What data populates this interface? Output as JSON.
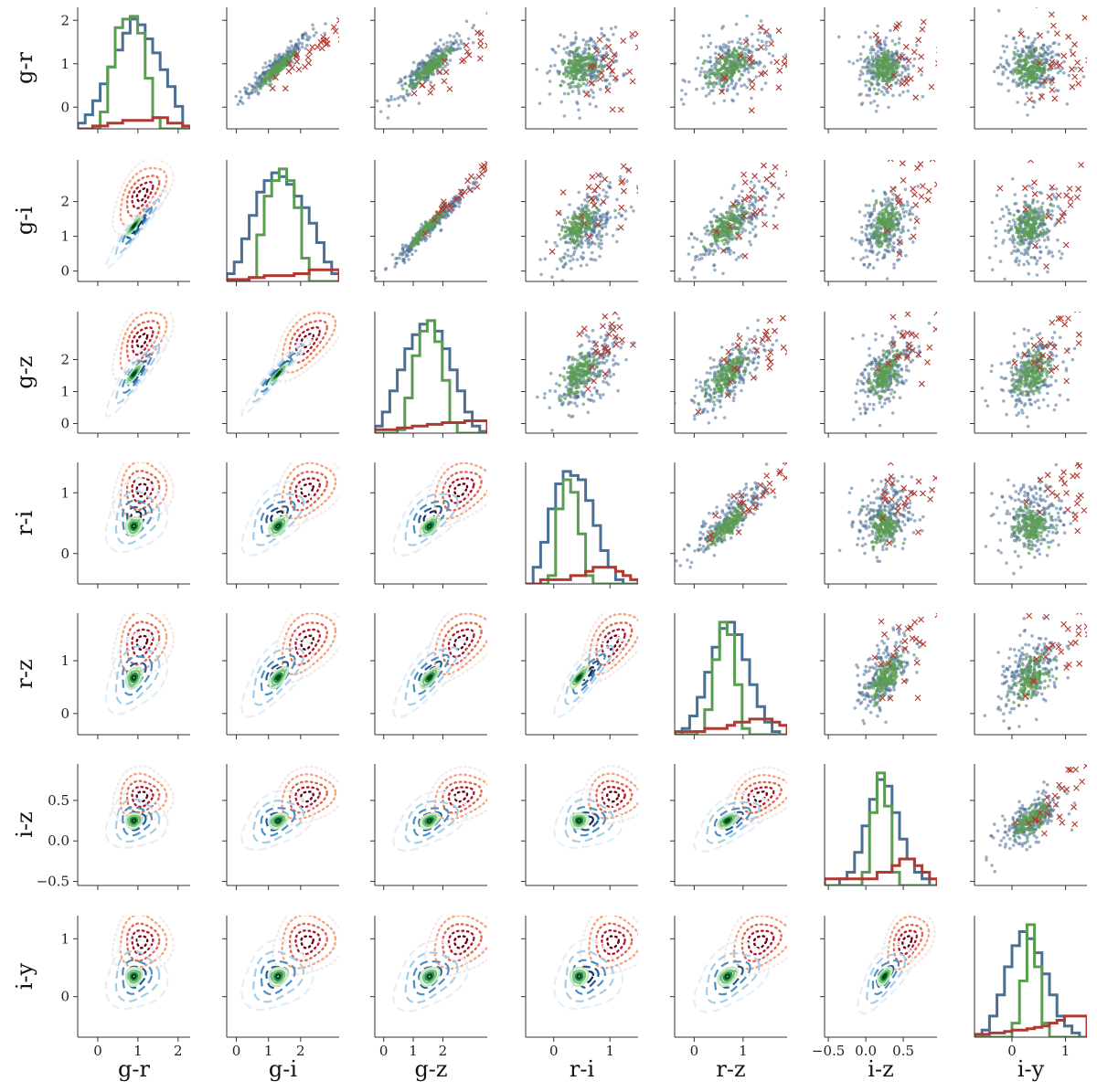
{
  "chart_data": {
    "type": "scatter",
    "title": "",
    "variables": [
      "g-r",
      "g-i",
      "g-z",
      "r-i",
      "r-z",
      "i-z",
      "i-y"
    ],
    "axis_labels": {
      "x": [
        "g-r",
        "g-i",
        "g-z",
        "r-i",
        "r-z",
        "i-z",
        "i-y"
      ],
      "y": [
        "g-r",
        "g-i",
        "g-z",
        "r-i",
        "r-z",
        "i-z",
        "i-y"
      ]
    },
    "ranges": {
      "g-r": [
        -0.5,
        2.3
      ],
      "g-i": [
        -0.3,
        3.2
      ],
      "g-z": [
        -0.3,
        3.5
      ],
      "r-i": [
        -0.5,
        1.5
      ],
      "r-z": [
        -0.4,
        1.9
      ],
      "i-z": [
        -0.55,
        0.95
      ],
      "i-y": [
        -0.7,
        1.4
      ]
    },
    "ticks": {
      "g-r": [
        0,
        1,
        2
      ],
      "g-i": [
        0,
        1,
        2
      ],
      "g-z": [
        0,
        1,
        2
      ],
      "r-i": [
        0,
        1
      ],
      "r-z": [
        0,
        1
      ],
      "i-z": [
        -0.5,
        0.0,
        0.5
      ],
      "i-y": [
        0,
        1
      ]
    },
    "tick_labels": {
      "g-r": [
        "0",
        "1",
        "2"
      ],
      "g-i": [
        "0",
        "1",
        "2"
      ],
      "g-z": [
        "0",
        "1",
        "2"
      ],
      "r-i": [
        "0",
        "1"
      ],
      "r-z": [
        "0",
        "1"
      ],
      "i-z": [
        "−0.5",
        "0.0",
        "0.5"
      ],
      "i-y": [
        "0",
        "1"
      ]
    },
    "populations": {
      "blue": {
        "role": "scatter points / dashed contours / histogram",
        "color": "#4a6f95",
        "mean": {
          "g-r": 0.95,
          "g-i": 1.25,
          "g-z": 1.55,
          "r-i": 0.6,
          "r-z": 0.75,
          "i-z": 0.25,
          "i-y": 0.35
        }
      },
      "green": {
        "role": "dense core points / solid contours / histogram",
        "color": "#5b9c52",
        "mean": {
          "g-r": 0.9,
          "g-i": 1.3,
          "g-z": 1.55,
          "r-i": 0.45,
          "r-z": 0.68,
          "i-z": 0.25,
          "i-y": 0.35
        }
      },
      "red": {
        "role": "cross markers / dotted contours / histogram",
        "color": "#b03a32",
        "mean": {
          "g-r": 1.1,
          "g-i": 2.2,
          "g-z": 2.6,
          "r-i": 1.05,
          "r-z": 1.35,
          "i-z": 0.55,
          "i-y": 0.95
        }
      }
    },
    "histograms": [
      {
        "variable": "g-r",
        "blue": [
          0.1,
          0.25,
          0.5,
          0.8,
          1.1,
          1.4,
          1.7,
          1.95,
          1.85,
          1.6,
          1.35,
          1.05,
          0.75,
          0.4,
          0.0
        ],
        "green": [
          0.0,
          0.0,
          0.0,
          0.3,
          1.1,
          1.8,
          1.95,
          2.0,
          1.7,
          0.9,
          0.2,
          0.0,
          0.0,
          0.0,
          0.0
        ],
        "red": [
          0.0,
          0.0,
          0.05,
          0.05,
          0.1,
          0.1,
          0.15,
          0.15,
          0.15,
          0.15,
          0.2,
          0.2,
          0.1,
          0.1,
          0.05
        ]
      },
      {
        "variable": "g-i",
        "blue": [
          0.2,
          0.5,
          1.1,
          1.7,
          2.3,
          2.6,
          2.8,
          2.7,
          2.5,
          2.2,
          1.9,
          1.5,
          1.0,
          0.5,
          0.2
        ],
        "green": [
          0.0,
          0.0,
          0.0,
          0.1,
          1.2,
          2.2,
          2.6,
          2.9,
          2.6,
          1.9,
          0.6,
          0.0,
          0.0,
          0.0,
          0.0
        ],
        "red": [
          0.05,
          0.05,
          0.05,
          0.1,
          0.1,
          0.15,
          0.15,
          0.15,
          0.15,
          0.2,
          0.2,
          0.3,
          0.3,
          0.3,
          0.3
        ]
      },
      {
        "variable": "g-z",
        "blue": [
          0.2,
          0.6,
          1.2,
          1.8,
          2.4,
          2.8,
          3.1,
          3.2,
          2.9,
          2.4,
          1.8,
          1.2,
          0.6,
          0.2,
          0.05
        ],
        "green": [
          0.0,
          0.0,
          0.0,
          0.1,
          1.0,
          2.2,
          2.9,
          3.2,
          2.6,
          1.5,
          0.3,
          0.0,
          0.0,
          0.0,
          0.0
        ],
        "red": [
          0.1,
          0.1,
          0.1,
          0.15,
          0.15,
          0.2,
          0.2,
          0.25,
          0.25,
          0.3,
          0.3,
          0.3,
          0.35,
          0.35,
          0.35
        ]
      },
      {
        "variable": "r-i",
        "blue": [
          0.0,
          0.2,
          0.5,
          0.9,
          1.2,
          1.35,
          1.3,
          1.25,
          1.0,
          0.7,
          0.4,
          0.2,
          0.05,
          0.0,
          0.0
        ],
        "green": [
          0.0,
          0.0,
          0.0,
          0.1,
          0.9,
          1.25,
          1.1,
          0.6,
          0.1,
          0.0,
          0.0,
          0.0,
          0.0,
          0.0,
          0.0
        ],
        "red": [
          0.0,
          0.0,
          0.05,
          0.05,
          0.05,
          0.05,
          0.1,
          0.1,
          0.15,
          0.2,
          0.2,
          0.2,
          0.15,
          0.1,
          0.05
        ]
      },
      {
        "variable": "r-z",
        "blue": [
          0.0,
          0.1,
          0.3,
          0.6,
          1.0,
          1.4,
          1.7,
          1.8,
          1.6,
          1.2,
          0.8,
          0.45,
          0.2,
          0.05,
          0.0
        ],
        "green": [
          0.0,
          0.0,
          0.0,
          0.05,
          0.4,
          1.2,
          1.8,
          1.6,
          0.8,
          0.1,
          0.0,
          0.0,
          0.0,
          0.0,
          0.0
        ],
        "red": [
          0.05,
          0.05,
          0.05,
          0.05,
          0.1,
          0.1,
          0.1,
          0.15,
          0.2,
          0.2,
          0.25,
          0.25,
          0.25,
          0.2,
          0.15
        ]
      },
      {
        "variable": "i-z",
        "blue": [
          0.0,
          0.0,
          0.05,
          0.1,
          0.25,
          0.45,
          0.65,
          0.8,
          0.75,
          0.55,
          0.35,
          0.2,
          0.1,
          0.05,
          0.0
        ],
        "green": [
          0.0,
          0.0,
          0.0,
          0.0,
          0.0,
          0.1,
          0.55,
          0.85,
          0.6,
          0.1,
          0.0,
          0.0,
          0.0,
          0.0,
          0.0
        ],
        "red": [
          0.05,
          0.05,
          0.05,
          0.05,
          0.05,
          0.05,
          0.05,
          0.1,
          0.1,
          0.15,
          0.2,
          0.2,
          0.15,
          0.1,
          0.05
        ]
      },
      {
        "variable": "i-y",
        "blue": [
          0.0,
          0.05,
          0.15,
          0.3,
          0.5,
          0.65,
          0.75,
          0.7,
          0.6,
          0.45,
          0.3,
          0.15,
          0.08,
          0.03,
          0.0
        ],
        "green": [
          0.0,
          0.0,
          0.0,
          0.0,
          0.0,
          0.1,
          0.4,
          0.8,
          0.5,
          0.1,
          0.0,
          0.0,
          0.0,
          0.0,
          0.0
        ],
        "red": [
          0.02,
          0.02,
          0.03,
          0.03,
          0.04,
          0.05,
          0.05,
          0.06,
          0.07,
          0.08,
          0.1,
          0.12,
          0.15,
          0.15,
          0.15
        ]
      }
    ],
    "layout": {
      "lower_triangle": "density contours (blue dashed, green solid, red dotted)",
      "diagonal": "step histograms",
      "upper_triangle": "scatter (blue/green dots, red crosses)",
      "grid": false
    }
  }
}
